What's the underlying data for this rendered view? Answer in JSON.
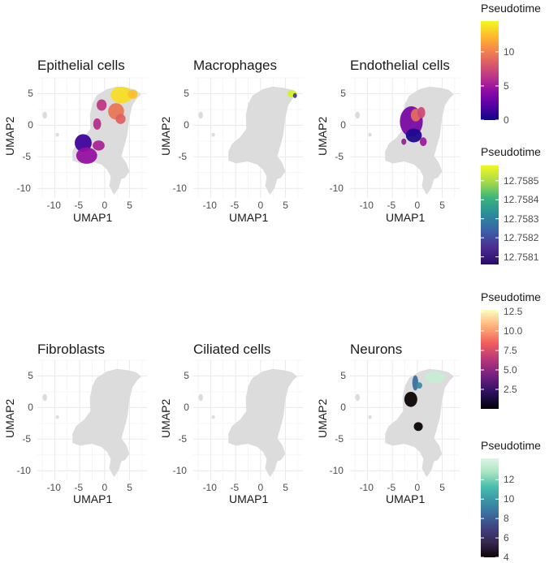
{
  "chart_data": {
    "type": "scatter",
    "description_free": true,
    "xlabel": "UMAP1",
    "ylabel": "UMAP2",
    "xlim": [
      -13.5,
      8.5
    ],
    "ylim": [
      -11.5,
      7.5
    ],
    "xticks": [
      -10,
      -5,
      0,
      5
    ],
    "yticks": [
      5,
      0,
      -5,
      -10
    ],
    "xtick_labels": [
      "-10",
      "-5",
      "0",
      "5"
    ],
    "ytick_labels": [
      "5",
      "0",
      "-5",
      "-10"
    ],
    "background_color": "#dcdcdc",
    "panels": [
      {
        "title": "Epithelial cells",
        "palette": "plasma",
        "colored_regions": [
          {
            "center": [
              3.4,
              4.8
            ],
            "radius": [
              2.2,
              1.3
            ],
            "pseudotime": 13.5
          },
          {
            "center": [
              5.6,
              4.9
            ],
            "radius": [
              1.0,
              0.7
            ],
            "pseudotime": 12.5
          },
          {
            "center": [
              2.3,
              2.2
            ],
            "radius": [
              1.6,
              1.3
            ],
            "pseudotime": 9.5
          },
          {
            "center": [
              3.2,
              1.0
            ],
            "radius": [
              1.0,
              0.8
            ],
            "pseudotime": 8.5
          },
          {
            "center": [
              -0.6,
              3.2
            ],
            "radius": [
              1.0,
              0.9
            ],
            "pseudotime": 6.5
          },
          {
            "center": [
              -1.5,
              0.2
            ],
            "radius": [
              0.8,
              0.9
            ],
            "pseudotime": 6.0
          },
          {
            "center": [
              -4.3,
              -2.8
            ],
            "radius": [
              1.7,
              1.4
            ],
            "pseudotime": 1.5
          },
          {
            "center": [
              -3.6,
              -4.8
            ],
            "radius": [
              2.1,
              1.3
            ],
            "pseudotime": 4.5
          },
          {
            "center": [
              -1.2,
              -3.2
            ],
            "radius": [
              1.2,
              0.8
            ],
            "pseudotime": 5.5
          }
        ]
      },
      {
        "title": "Macrophages",
        "palette": "plasma_short",
        "colored_regions": [
          {
            "center": [
              6.3,
              5.0
            ],
            "radius": [
              0.9,
              0.6
            ],
            "pseudotime": 12.75855
          },
          {
            "center": [
              6.9,
              4.7
            ],
            "radius": [
              0.4,
              0.4
            ],
            "pseudotime": 12.75818
          }
        ]
      },
      {
        "title": "Endothelial cells",
        "palette": "plasma",
        "colored_regions": [
          {
            "center": [
              -1.2,
              0.6
            ],
            "radius": [
              2.3,
              2.4
            ],
            "pseudotime": 3.5
          },
          {
            "center": [
              -0.3,
              1.6
            ],
            "radius": [
              1.0,
              1.0
            ],
            "pseudotime": 9.0
          },
          {
            "center": [
              -0.7,
              -1.6
            ],
            "radius": [
              1.6,
              1.1
            ],
            "pseudotime": 0.5
          },
          {
            "center": [
              0.8,
              2.0
            ],
            "radius": [
              0.8,
              0.9
            ],
            "pseudotime": 7.5
          },
          {
            "center": [
              1.2,
              -2.6
            ],
            "radius": [
              0.7,
              0.7
            ],
            "pseudotime": 5.0
          },
          {
            "center": [
              -2.7,
              -2.6
            ],
            "radius": [
              0.5,
              0.5
            ],
            "pseudotime": 5.0
          }
        ]
      },
      {
        "title": "Fibroblasts",
        "palette": "none",
        "colored_regions": []
      },
      {
        "title": "Ciliated cells",
        "palette": "none",
        "colored_regions": []
      },
      {
        "title": "Neurons",
        "palette": "mako",
        "colored_regions": [
          {
            "center": [
              -1.3,
              1.3
            ],
            "radius": [
              1.3,
              1.2
            ],
            "pseudotime": 4.0
          },
          {
            "center": [
              -0.4,
              3.9
            ],
            "radius": [
              0.6,
              1.2
            ],
            "pseudotime": 8.5
          },
          {
            "center": [
              0.4,
              3.5
            ],
            "radius": [
              0.6,
              0.5
            ],
            "pseudotime": 9.5
          },
          {
            "center": [
              0.2,
              -3.0
            ],
            "radius": [
              0.9,
              0.7
            ],
            "pseudotime": 4.0
          },
          {
            "center": [
              3.5,
              4.8
            ],
            "radius": [
              2.0,
              0.9
            ],
            "pseudotime": 13.5
          }
        ]
      }
    ],
    "legends": [
      {
        "title": "Pseudotime",
        "palette": "plasma",
        "min": 0,
        "max": 14.5,
        "ticks": [
          10,
          5,
          0
        ],
        "tick_labels": [
          "10",
          "5",
          "0"
        ]
      },
      {
        "title": "Pseudotime",
        "palette": "plasma_short",
        "min": 12.75806,
        "max": 12.75858,
        "ticks": [
          12.7585,
          12.7584,
          12.7583,
          12.7582,
          12.7581
        ],
        "tick_labels": [
          "12.7585",
          "12.7584",
          "12.7583",
          "12.7582",
          "12.7581"
        ]
      },
      {
        "title": "Pseudotime",
        "palette": "magma",
        "min": 0,
        "max": 12.7,
        "ticks": [
          12.5,
          10.0,
          7.5,
          5.0,
          2.5
        ],
        "tick_labels": [
          "12.5",
          "10.0",
          "7.5",
          "5.0",
          "2.5"
        ]
      },
      {
        "title": "Pseudotime",
        "palette": "mako",
        "min": 4,
        "max": 14.2,
        "ticks": [
          12,
          10,
          8,
          6,
          4
        ],
        "tick_labels": [
          "12",
          "10",
          "8",
          "6",
          "4"
        ]
      }
    ]
  }
}
